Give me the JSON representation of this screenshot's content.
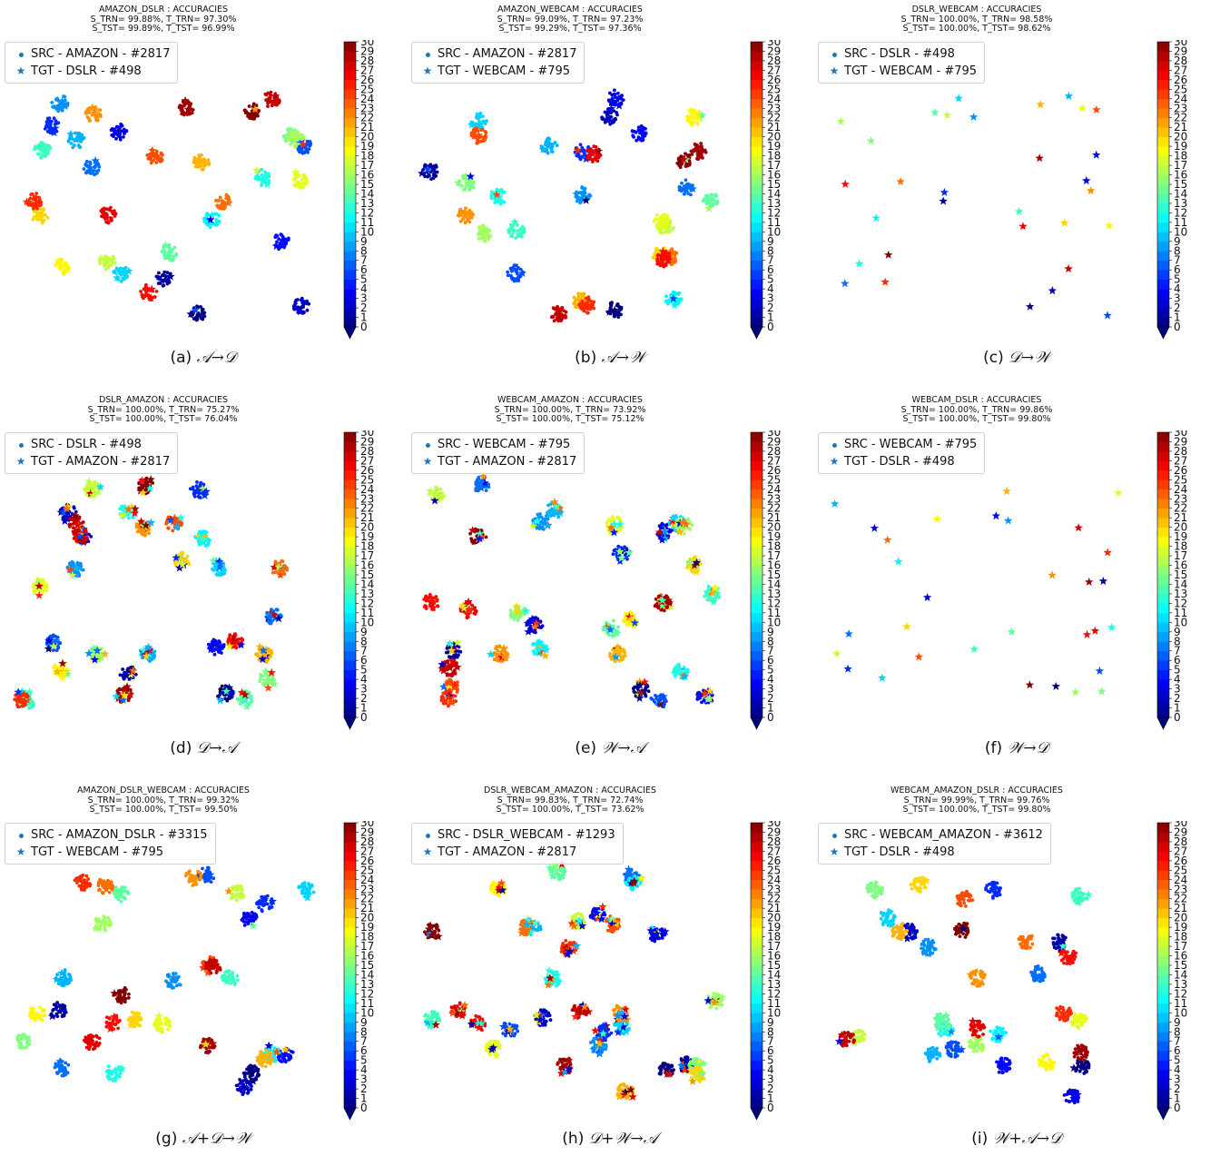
{
  "colorbar": {
    "ticks": [
      "0",
      "1",
      "2",
      "3",
      "4",
      "5",
      "6",
      "7",
      "8",
      "9",
      "10",
      "11",
      "12",
      "13",
      "14",
      "15",
      "16",
      "17",
      "18",
      "19",
      "20",
      "21",
      "22",
      "23",
      "24",
      "25",
      "26",
      "27",
      "28",
      "29",
      "30"
    ]
  },
  "chart_data": [
    {
      "type": "scatter",
      "tag": "(a)",
      "source": "𝒜",
      "target": "𝒟",
      "arrow": "→",
      "title_lines": [
        "AMAZON_DSLR : ACCURACIES",
        "S_TRN= 99.88%, T_TRN= 97.30%",
        "S_TST= 99.89%, T_TST= 96.99%"
      ],
      "legend": [
        {
          "symbol": "dot",
          "label": "SRC - AMAZON - #2817"
        },
        {
          "symbol": "star",
          "label": "TGT - DSLR - #498"
        }
      ],
      "colorbar": {
        "min": 0,
        "max": 30
      }
    },
    {
      "type": "scatter",
      "tag": "(b)",
      "source": "𝒜",
      "target": "𝒲",
      "arrow": "→",
      "title_lines": [
        "AMAZON_WEBCAM : ACCURACIES",
        "S_TRN= 99.09%, T_TRN= 97.23%",
        "S_TST= 99.29%, T_TST= 97.36%"
      ],
      "legend": [
        {
          "symbol": "dot",
          "label": "SRC - AMAZON - #2817"
        },
        {
          "symbol": "star",
          "label": "TGT - WEBCAM - #795"
        }
      ],
      "colorbar": {
        "min": 0,
        "max": 30
      }
    },
    {
      "type": "scatter",
      "tag": "(c)",
      "source": "𝒟",
      "target": "𝒲",
      "arrow": "→",
      "title_lines": [
        "DSLR_WEBCAM : ACCURACIES",
        "S_TRN= 100.00%, T_TRN= 98.58%",
        "S_TST= 100.00%, T_TST= 98.62%"
      ],
      "legend": [
        {
          "symbol": "dot",
          "label": "SRC - DSLR - #498"
        },
        {
          "symbol": "star",
          "label": "TGT - WEBCAM - #795"
        }
      ],
      "colorbar": {
        "min": 0,
        "max": 30
      }
    },
    {
      "type": "scatter",
      "tag": "(d)",
      "source": "𝒟",
      "target": "𝒜",
      "arrow": "→",
      "title_lines": [
        "DSLR_AMAZON : ACCURACIES",
        "S_TRN= 100.00%, T_TRN= 75.27%",
        "S_TST= 100.00%, T_TST= 76.04%"
      ],
      "legend": [
        {
          "symbol": "dot",
          "label": "SRC - DSLR - #498"
        },
        {
          "symbol": "star",
          "label": "TGT - AMAZON - #2817"
        }
      ],
      "colorbar": {
        "min": 0,
        "max": 30
      }
    },
    {
      "type": "scatter",
      "tag": "(e)",
      "source": "𝒲",
      "target": "𝒜",
      "arrow": "→",
      "title_lines": [
        "WEBCAM_AMAZON : ACCURACIES",
        "S_TRN= 100.00%, T_TRN= 73.92%",
        "S_TST= 100.00%, T_TST= 75.12%"
      ],
      "legend": [
        {
          "symbol": "dot",
          "label": "SRC - WEBCAM - #795"
        },
        {
          "symbol": "star",
          "label": "TGT - AMAZON - #2817"
        }
      ],
      "colorbar": {
        "min": 0,
        "max": 30
      }
    },
    {
      "type": "scatter",
      "tag": "(f)",
      "source": "𝒲",
      "target": "𝒟",
      "arrow": "→",
      "title_lines": [
        "WEBCAM_DSLR : ACCURACIES",
        "S_TRN= 100.00%, T_TRN= 99.86%",
        "S_TST= 100.00%, T_TST= 99.80%"
      ],
      "legend": [
        {
          "symbol": "dot",
          "label": "SRC - WEBCAM - #795"
        },
        {
          "symbol": "star",
          "label": "TGT - DSLR - #498"
        }
      ],
      "colorbar": {
        "min": 0,
        "max": 30
      }
    },
    {
      "type": "scatter",
      "tag": "(g)",
      "source": "𝒜+𝒟",
      "target": "𝒲",
      "arrow": "→",
      "title_lines": [
        "AMAZON_DSLR_WEBCAM : ACCURACIES",
        "S_TRN= 100.00%, T_TRN= 99.32%",
        "S_TST= 100.00%, T_TST= 99.50%"
      ],
      "legend": [
        {
          "symbol": "dot",
          "label": "SRC - AMAZON_DSLR - #3315"
        },
        {
          "symbol": "star",
          "label": "TGT - WEBCAM - #795"
        }
      ],
      "colorbar": {
        "min": 0,
        "max": 30
      }
    },
    {
      "type": "scatter",
      "tag": "(h)",
      "source": "𝒟+𝒲",
      "target": "𝒜",
      "arrow": "→",
      "title_lines": [
        "DSLR_WEBCAM_AMAZON : ACCURACIES",
        "S_TRN= 99.83%, T_TRN= 72.74%",
        "S_TST= 100.00%, T_TST= 73.62%"
      ],
      "legend": [
        {
          "symbol": "dot",
          "label": "SRC - DSLR_WEBCAM - #1293"
        },
        {
          "symbol": "star",
          "label": "TGT - AMAZON - #2817"
        }
      ],
      "colorbar": {
        "min": 0,
        "max": 30
      }
    },
    {
      "type": "scatter",
      "tag": "(i)",
      "source": "𝒲+𝒜",
      "target": "𝒟",
      "arrow": "→",
      "title_lines": [
        "WEBCAM_AMAZON_DSLR : ACCURACIES",
        "S_TRN= 99.99%, T_TRN= 99.76%",
        "S_TST= 100.00%, T_TST= 99.80%"
      ],
      "legend": [
        {
          "symbol": "dot",
          "label": "SRC - WEBCAM_AMAZON - #3612"
        },
        {
          "symbol": "star",
          "label": "TGT - DSLR - #498"
        }
      ],
      "colorbar": {
        "min": 0,
        "max": 30
      }
    }
  ]
}
